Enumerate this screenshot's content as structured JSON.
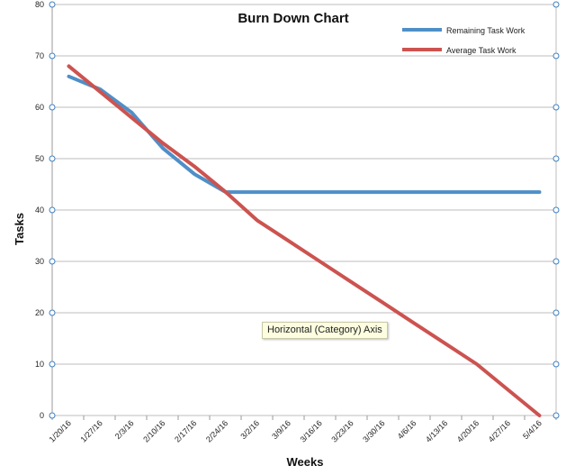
{
  "chart_data": {
    "type": "line",
    "title": "Burn Down Chart",
    "xlabel": "Weeks",
    "ylabel": "Tasks",
    "ylim": [
      0,
      80
    ],
    "yticks": [
      0,
      10,
      20,
      30,
      40,
      50,
      60,
      70,
      80
    ],
    "grid": true,
    "legend_position": "top-right",
    "categories": [
      "1/20/16",
      "1/27/16",
      "2/3/16",
      "2/10/16",
      "2/17/16",
      "2/24/16",
      "3/2/16",
      "3/9/16",
      "3/16/16",
      "3/23/16",
      "3/30/16",
      "4/6/16",
      "4/13/16",
      "4/20/16",
      "4/27/16",
      "5/4/16"
    ],
    "series": [
      {
        "name": "Remaining Task Work",
        "color": "#4f8fc7",
        "values": [
          66,
          63.5,
          59,
          52,
          47,
          43.5,
          43.5,
          43.5,
          43.5,
          43.5,
          43.5,
          43.5,
          43.5,
          43.5,
          43.5,
          43.5
        ]
      },
      {
        "name": "Average Task Work",
        "color": "#cc5350",
        "values": [
          68,
          63,
          58,
          53,
          48.5,
          43.5,
          38,
          34,
          30,
          26,
          22,
          18,
          14,
          10,
          5,
          0
        ]
      }
    ]
  },
  "tooltip": {
    "text": "Horizontal (Category) Axis"
  }
}
